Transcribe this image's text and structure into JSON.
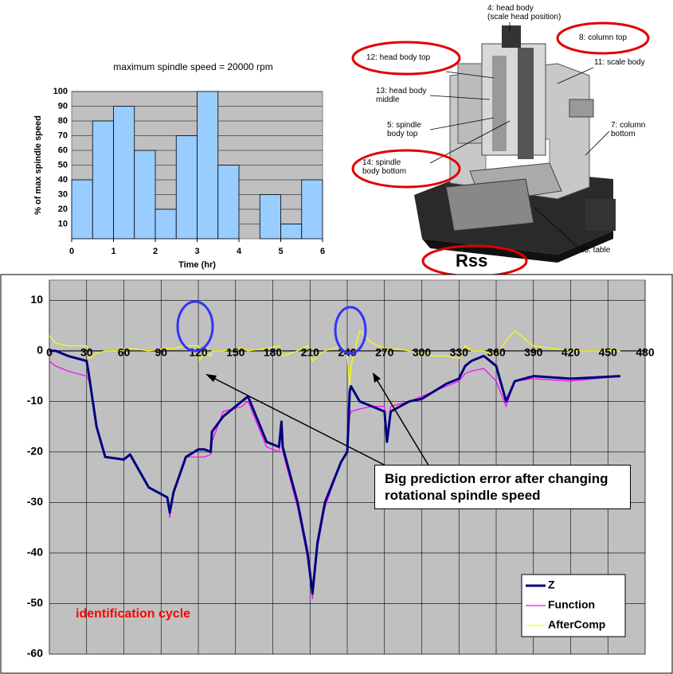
{
  "chart_data": [
    {
      "type": "histogram",
      "title": "maximum spindle speed = 20000 rpm",
      "xlabel": "Time (hr)",
      "ylabel": "% of max spindle speed",
      "bins": [
        0,
        0.5,
        1,
        1.5,
        2,
        2.5,
        3,
        3.5,
        4,
        4.5,
        5,
        5.5,
        6
      ],
      "values": [
        40,
        80,
        90,
        60,
        20,
        70,
        100,
        50,
        0,
        30,
        10,
        40
      ],
      "color": "#99ccff",
      "plot_background": "#c0c0c0",
      "xlim": [
        0,
        6
      ],
      "xticks": [
        0,
        1,
        2,
        3,
        4,
        5,
        6
      ],
      "ylim": [
        0,
        100
      ],
      "yticks": [
        10,
        20,
        30,
        40,
        50,
        60,
        70,
        80,
        90,
        100
      ],
      "grid": true
    },
    {
      "type": "line",
      "plot_background": "#c0c0c0",
      "grid": true,
      "legend": "lower right",
      "xlim": [
        0,
        480
      ],
      "xticks": [
        0,
        30,
        60,
        90,
        120,
        150,
        180,
        210,
        240,
        270,
        300,
        330,
        360,
        390,
        420,
        450,
        480
      ],
      "ylim": [
        -60,
        14
      ],
      "yticks": [
        10,
        0,
        -10,
        -20,
        -30,
        -40,
        -50,
        -60
      ],
      "x": [
        0,
        5,
        15,
        30,
        32,
        38,
        45,
        60,
        65,
        80,
        95,
        97,
        100,
        110,
        120,
        121,
        125,
        130,
        131,
        140,
        155,
        160,
        175,
        185,
        187,
        188,
        200,
        208,
        212,
        216,
        222,
        235,
        240,
        242,
        243,
        250,
        260,
        270,
        272,
        275,
        290,
        300,
        310,
        320,
        330,
        335,
        340,
        350,
        360,
        368,
        375,
        390,
        420,
        460
      ],
      "series": [
        {
          "name": "Z",
          "color": "#000080",
          "width": 3,
          "values": [
            0,
            0,
            -1,
            -2,
            -5,
            -15,
            -21,
            -21.5,
            -20.5,
            -27,
            -29,
            -32,
            -28,
            -21,
            -19.5,
            -19.5,
            -19.5,
            -20,
            -16,
            -13,
            -10,
            -9,
            -18,
            -19,
            -14,
            -19,
            -30,
            -40,
            -48,
            -38,
            -30,
            -22,
            -20,
            -8,
            -7,
            -10,
            -11,
            -12,
            -18,
            -12,
            -10,
            -9.5,
            -8,
            -6.5,
            -5.5,
            -3,
            -2,
            -1,
            -3,
            -10,
            -6,
            -5,
            -5.5,
            -5
          ]
        },
        {
          "name": "Function",
          "color": "#ff00ff",
          "width": 1.2,
          "values": [
            -2,
            -3,
            -4,
            -5,
            -6,
            -15,
            -21,
            -21.5,
            -20.5,
            -27,
            -29,
            -33,
            -28,
            -21,
            -21,
            -21,
            -21,
            -20.5,
            -18,
            -12,
            -11,
            -10,
            -19,
            -20,
            -16,
            -20,
            -31,
            -41,
            -49,
            -39,
            -31,
            -22,
            -20,
            -13,
            -12,
            -11.5,
            -11,
            -11,
            -17,
            -11,
            -10,
            -9,
            -8,
            -7,
            -6,
            -4.5,
            -4,
            -3.5,
            -6,
            -11,
            -6,
            -5.5,
            -6,
            -5
          ]
        },
        {
          "name": "AfterComp",
          "color": "#ffff00",
          "width": 1.2,
          "values": [
            3,
            1.5,
            1,
            1,
            -1.5,
            -0.5,
            0,
            0,
            0.5,
            0,
            0.5,
            0.5,
            0.5,
            1,
            1,
            -2,
            -0.5,
            -1,
            0,
            0,
            0.5,
            0,
            0.5,
            1,
            0,
            -1,
            0,
            1,
            -2,
            -1,
            0,
            1,
            -1,
            -7,
            -3,
            4,
            1.5,
            0.5,
            0,
            0.5,
            0,
            -0.5,
            -1,
            -1,
            -1.5,
            1,
            0,
            0,
            -1,
            2,
            4,
            1,
            0,
            0
          ]
        }
      ],
      "annotations": [
        "Big prediction error after changing rotational spindle speed",
        "identification cycle"
      ]
    }
  ],
  "diagram": {
    "labels": [
      "4: head body",
      "(scale head position)",
      "8: column top",
      "12: head body top",
      "11: scale body",
      "13: head body middle",
      "5: spindle body top",
      "7: column bottom",
      "14: spindle body bottom",
      "15: table",
      "Rss"
    ]
  }
}
